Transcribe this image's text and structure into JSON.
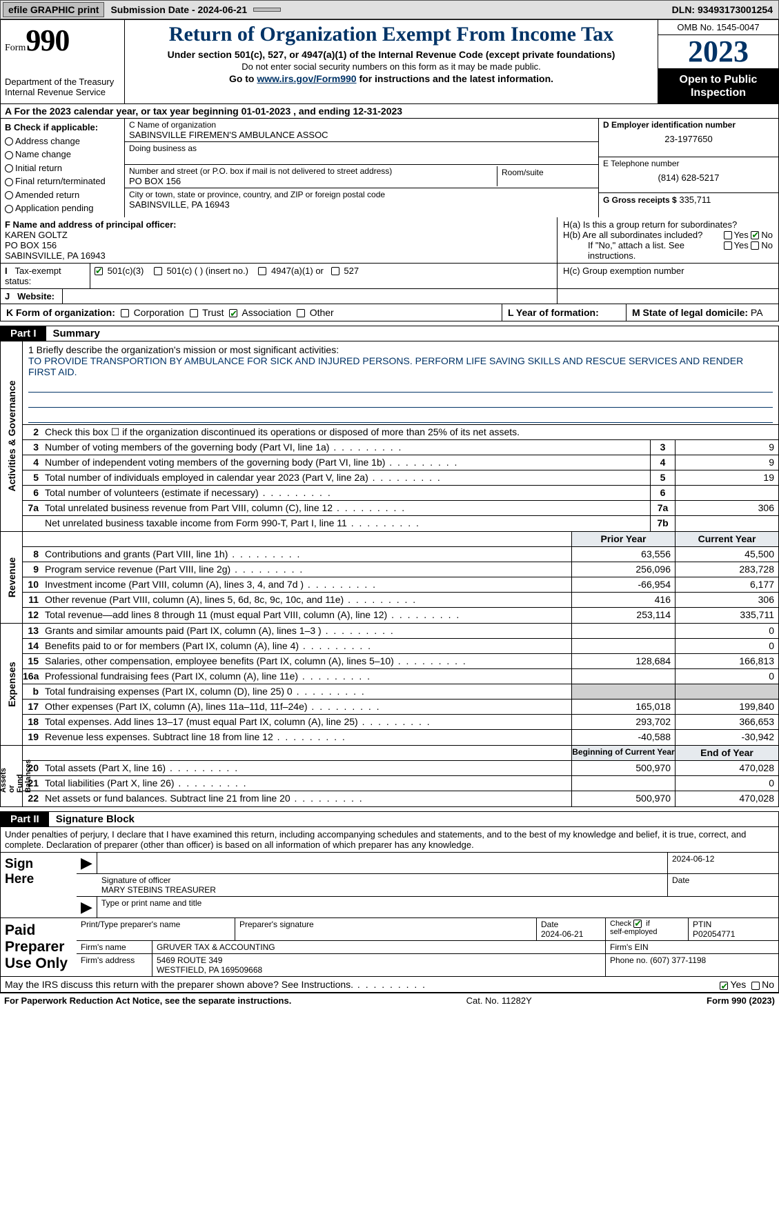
{
  "colors": {
    "accent": "#003366",
    "check": "#008000",
    "shade": "#d0d0d0",
    "hdr_shade": "#e6eaee"
  },
  "fonts": {
    "serif": "Times New Roman",
    "sans": "Arial",
    "title_size": 30,
    "year_size": 44
  },
  "top": {
    "efile": "efile GRAPHIC print",
    "sub": "Submission Date - 2024-06-21",
    "dln": "DLN: 93493173001254"
  },
  "header": {
    "form_word": "Form",
    "form_num": "990",
    "title": "Return of Organization Exempt From Income Tax",
    "sub1": "Under section 501(c), 527, or 4947(a)(1) of the Internal Revenue Code (except private foundations)",
    "sub2": "Do not enter social security numbers on this form as it may be made public.",
    "sub3_pre": "Go to ",
    "sub3_link": "www.irs.gov/Form990",
    "sub3_post": " for instructions and the latest information.",
    "dept": "Department of the Treasury\nInternal Revenue Service",
    "omb": "OMB No. 1545-0047",
    "year": "2023",
    "open": "Open to Public\nInspection"
  },
  "A": "A  For the 2023 calendar year, or tax year beginning 01-01-2023    , and ending 12-31-2023",
  "B": {
    "head": "B Check if applicable:",
    "items": [
      "Address change",
      "Name change",
      "Initial return",
      "Final return/terminated",
      "Amended return",
      "Application pending"
    ]
  },
  "C": {
    "name_lab": "C Name of organization",
    "name": "SABINSVILLE FIREMEN'S AMBULANCE ASSOC",
    "dba_lab": "Doing business as",
    "dba": "",
    "street_lab": "Number and street (or P.O. box if mail is not delivered to street address)",
    "street": "PO BOX 156",
    "room_lab": "Room/suite",
    "city_lab": "City or town, state or province, country, and ZIP or foreign postal code",
    "city": "SABINSVILLE, PA   16943"
  },
  "D": {
    "lab": "D Employer identification number",
    "val": "23-1977650"
  },
  "E": {
    "lab": "E Telephone number",
    "val": "(814) 628-5217"
  },
  "G": {
    "lab": "G Gross receipts $",
    "val": "335,711"
  },
  "F": {
    "lab": "F Name and address of principal officer:",
    "val": "KAREN GOLTZ\nPO BOX 156\nSABINSVILLE, PA   16943"
  },
  "H": {
    "a": "H(a)  Is this a group return for subordinates?",
    "a_yes": "Yes",
    "a_no": "No",
    "b": "H(b)  Are all subordinates included?",
    "b_note": "If \"No,\" attach a list. See instructions.",
    "c": "H(c)  Group exemption number"
  },
  "I": {
    "lab": "Tax-exempt status:",
    "opts": [
      "501(c)(3)",
      "501(c) (  ) (insert no.)",
      "4947(a)(1) or",
      "527"
    ],
    "checked": 0
  },
  "J": {
    "lab": "Website:",
    "val": ""
  },
  "K": {
    "lab": "K Form of organization:",
    "opts": [
      "Corporation",
      "Trust",
      "Association",
      "Other"
    ],
    "checked": 2
  },
  "L": {
    "lab": "L Year of formation:",
    "val": ""
  },
  "M": {
    "lab": "M State of legal domicile:",
    "val": "PA"
  },
  "part1": {
    "label": "Part I",
    "title": "Summary"
  },
  "mission": {
    "lab": "1   Briefly describe the organization's mission or most significant activities:",
    "text": "TO PROVIDE TRANSPORTION BY AMBULANCE FOR SICK AND INJURED PERSONS. PERFORM LIFE SAVING SKILLS AND RESCUE SERVICES AND RENDER FIRST AID."
  },
  "gov": {
    "l2": "Check this box ☐ if the organization discontinued its operations or disposed of more than 25% of its net assets.",
    "rows": [
      {
        "n": "3",
        "d": "Number of voting members of the governing body (Part VI, line 1a)",
        "b": "3",
        "v": "9"
      },
      {
        "n": "4",
        "d": "Number of independent voting members of the governing body (Part VI, line 1b)",
        "b": "4",
        "v": "9"
      },
      {
        "n": "5",
        "d": "Total number of individuals employed in calendar year 2023 (Part V, line 2a)",
        "b": "5",
        "v": "19"
      },
      {
        "n": "6",
        "d": "Total number of volunteers (estimate if necessary)",
        "b": "6",
        "v": ""
      },
      {
        "n": "7a",
        "d": "Total unrelated business revenue from Part VIII, column (C), line 12",
        "b": "7a",
        "v": "306"
      },
      {
        "n": "",
        "d": "Net unrelated business taxable income from Form 990-T, Part I, line 11",
        "b": "7b",
        "v": ""
      }
    ]
  },
  "hdr_py": "Prior Year",
  "hdr_cy": "Current Year",
  "rev": {
    "side": "Revenue",
    "rows": [
      {
        "n": "8",
        "d": "Contributions and grants (Part VIII, line 1h)",
        "p": "63,556",
        "c": "45,500"
      },
      {
        "n": "9",
        "d": "Program service revenue (Part VIII, line 2g)",
        "p": "256,096",
        "c": "283,728"
      },
      {
        "n": "10",
        "d": "Investment income (Part VIII, column (A), lines 3, 4, and 7d )",
        "p": "-66,954",
        "c": "6,177"
      },
      {
        "n": "11",
        "d": "Other revenue (Part VIII, column (A), lines 5, 6d, 8c, 9c, 10c, and 11e)",
        "p": "416",
        "c": "306"
      },
      {
        "n": "12",
        "d": "Total revenue—add lines 8 through 11 (must equal Part VIII, column (A), line 12)",
        "p": "253,114",
        "c": "335,711"
      }
    ]
  },
  "exp": {
    "side": "Expenses",
    "rows": [
      {
        "n": "13",
        "d": "Grants and similar amounts paid (Part IX, column (A), lines 1–3 )",
        "p": "",
        "c": "0"
      },
      {
        "n": "14",
        "d": "Benefits paid to or for members (Part IX, column (A), line 4)",
        "p": "",
        "c": "0"
      },
      {
        "n": "15",
        "d": "Salaries, other compensation, employee benefits (Part IX, column (A), lines 5–10)",
        "p": "128,684",
        "c": "166,813"
      },
      {
        "n": "16a",
        "d": "Professional fundraising fees (Part IX, column (A), line 11e)",
        "p": "",
        "c": "0"
      },
      {
        "n": "b",
        "d": "Total fundraising expenses (Part IX, column (D), line 25) 0",
        "p": "shade",
        "c": "shade"
      },
      {
        "n": "17",
        "d": "Other expenses (Part IX, column (A), lines 11a–11d, 11f–24e)",
        "p": "165,018",
        "c": "199,840"
      },
      {
        "n": "18",
        "d": "Total expenses. Add lines 13–17 (must equal Part IX, column (A), line 25)",
        "p": "293,702",
        "c": "366,653"
      },
      {
        "n": "19",
        "d": "Revenue less expenses. Subtract line 18 from line 12",
        "p": "-40,588",
        "c": "-30,942"
      }
    ]
  },
  "hdr_bcy": "Beginning of Current Year",
  "hdr_eoy": "End of Year",
  "net": {
    "side": "Net Assets or\nFund Balances",
    "rows": [
      {
        "n": "20",
        "d": "Total assets (Part X, line 16)",
        "p": "500,970",
        "c": "470,028"
      },
      {
        "n": "21",
        "d": "Total liabilities (Part X, line 26)",
        "p": "",
        "c": "0"
      },
      {
        "n": "22",
        "d": "Net assets or fund balances. Subtract line 21 from line 20",
        "p": "500,970",
        "c": "470,028"
      }
    ]
  },
  "part2": {
    "label": "Part II",
    "title": "Signature Block"
  },
  "penalty": "Under penalties of perjury, I declare that I have examined this return, including accompanying schedules and statements, and to the best of my knowledge and belief, it is true, correct, and complete. Declaration of preparer (other than officer) is based on all information of which preparer has any knowledge.",
  "sign": {
    "here": "Sign\nHere",
    "date": "2024-06-12",
    "sig_lab": "Signature of officer",
    "officer": "MARY STEBINS  TREASURER",
    "type_lab": "Type or print name and title",
    "date_lab": "Date"
  },
  "paid": {
    "lab": "Paid\nPreparer\nUse Only",
    "h1": "Print/Type preparer's name",
    "h2": "Preparer's signature",
    "h3": "Date",
    "date": "2024-06-21",
    "h4": "Check ☑ if self-employed",
    "h5": "PTIN",
    "ptin": "P02054771",
    "firm_lab": "Firm's name",
    "firm": "GRUVER TAX & ACCOUNTING",
    "ein_lab": "Firm's EIN",
    "addr_lab": "Firm's address",
    "addr": "5469 ROUTE 349\nWESTFIELD, PA   169509668",
    "phone_lab": "Phone no.",
    "phone": "(607) 377-1198"
  },
  "discuss": "May the IRS discuss this return with the preparer shown above? See Instructions.",
  "discuss_yes": "Yes",
  "discuss_no": "No",
  "footer": {
    "l": "For Paperwork Reduction Act Notice, see the separate instructions.",
    "m": "Cat. No. 11282Y",
    "r": "Form 990 (2023)"
  }
}
